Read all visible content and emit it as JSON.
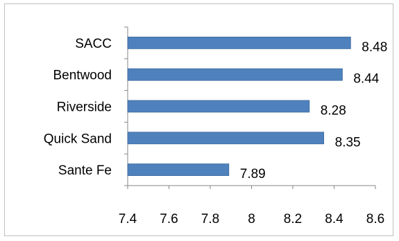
{
  "chart_data": {
    "type": "bar",
    "orientation": "horizontal",
    "title": "",
    "xlabel": "",
    "ylabel": "",
    "categories": [
      "SACC",
      "Bentwood",
      "Riverside",
      "Quick Sand",
      "Sante Fe"
    ],
    "values": [
      8.48,
      8.44,
      8.28,
      8.35,
      7.89
    ],
    "value_labels": [
      "8.48",
      "8.44",
      "8.28",
      "8.35",
      "7.89"
    ],
    "xlim": [
      7.4,
      8.6
    ],
    "xticks": [
      7.4,
      7.6,
      7.8,
      8.0,
      8.2,
      8.4,
      8.6
    ],
    "xtick_labels": [
      "7.4",
      "7.6",
      "7.8",
      "8",
      "8.2",
      "8.4",
      "8.6"
    ],
    "grid": false,
    "legend": "none",
    "bar_color": "#4F81BD",
    "bar_edge_color": "#3A6A9F"
  }
}
